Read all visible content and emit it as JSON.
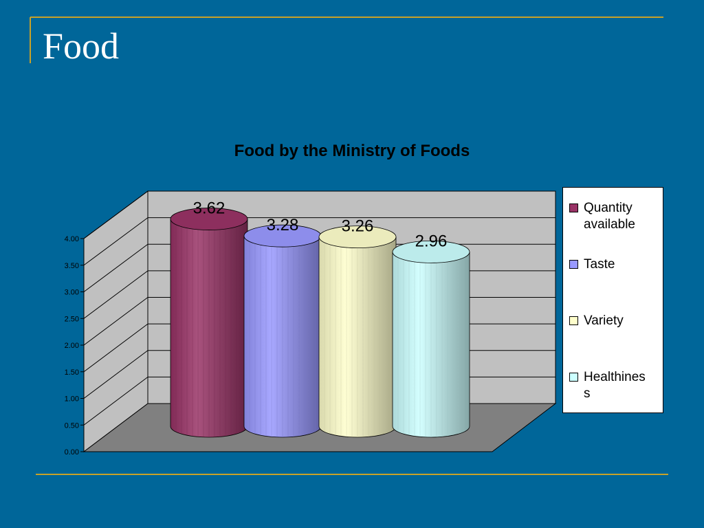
{
  "slide": {
    "title": "Food",
    "accent_color": "#c9a227",
    "background_color": "#006699"
  },
  "chart_data": {
    "type": "bar",
    "style": "3d-cylinder",
    "title": "Food by the Ministry of Foods",
    "xlabel": "",
    "ylabel": "",
    "ylim": [
      0,
      4
    ],
    "y_ticks": [
      "0.00",
      "0.50",
      "1.00",
      "1.50",
      "2.00",
      "2.50",
      "3.00",
      "3.50",
      "4.00"
    ],
    "grid": true,
    "legend_position": "right",
    "series": [
      {
        "name": "Quantity available",
        "value": 3.62,
        "label": "3.62",
        "color": "#993366"
      },
      {
        "name": "Taste",
        "value": 3.28,
        "label": "3.28",
        "color": "#9999ff"
      },
      {
        "name": "Variety",
        "value": 3.26,
        "label": "3.26",
        "color": "#ffffcc"
      },
      {
        "name": "Healthiness",
        "value": 2.96,
        "label": "2.96",
        "color": "#ccffff"
      }
    ],
    "legend_labels": [
      "Quantity available",
      "Taste",
      "Variety",
      "Healthines s"
    ]
  }
}
